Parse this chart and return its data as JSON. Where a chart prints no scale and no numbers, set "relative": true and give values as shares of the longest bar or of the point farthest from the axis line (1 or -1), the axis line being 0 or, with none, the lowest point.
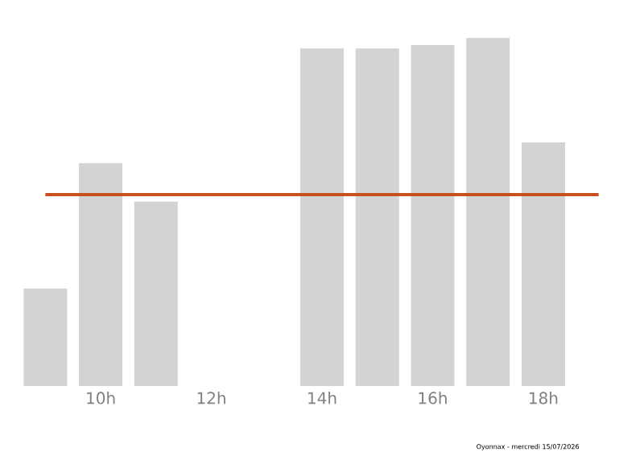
{
  "chart_data": {
    "type": "bar",
    "relative": true,
    "categories": [
      null,
      "10h",
      null,
      "12h",
      null,
      "14h",
      null,
      "16h",
      null,
      "18h",
      null
    ],
    "values": [
      0.28,
      0.64,
      0.53,
      0,
      0,
      0.97,
      0.97,
      0.98,
      1,
      0.7,
      0
    ],
    "color": "#d3d3d3",
    "ref_lines": [
      {
        "axis": "y",
        "value": 0.55,
        "color": "#c8501e"
      }
    ],
    "annotations": [
      "Oyonnax - mercredi 15/07/2026"
    ]
  }
}
